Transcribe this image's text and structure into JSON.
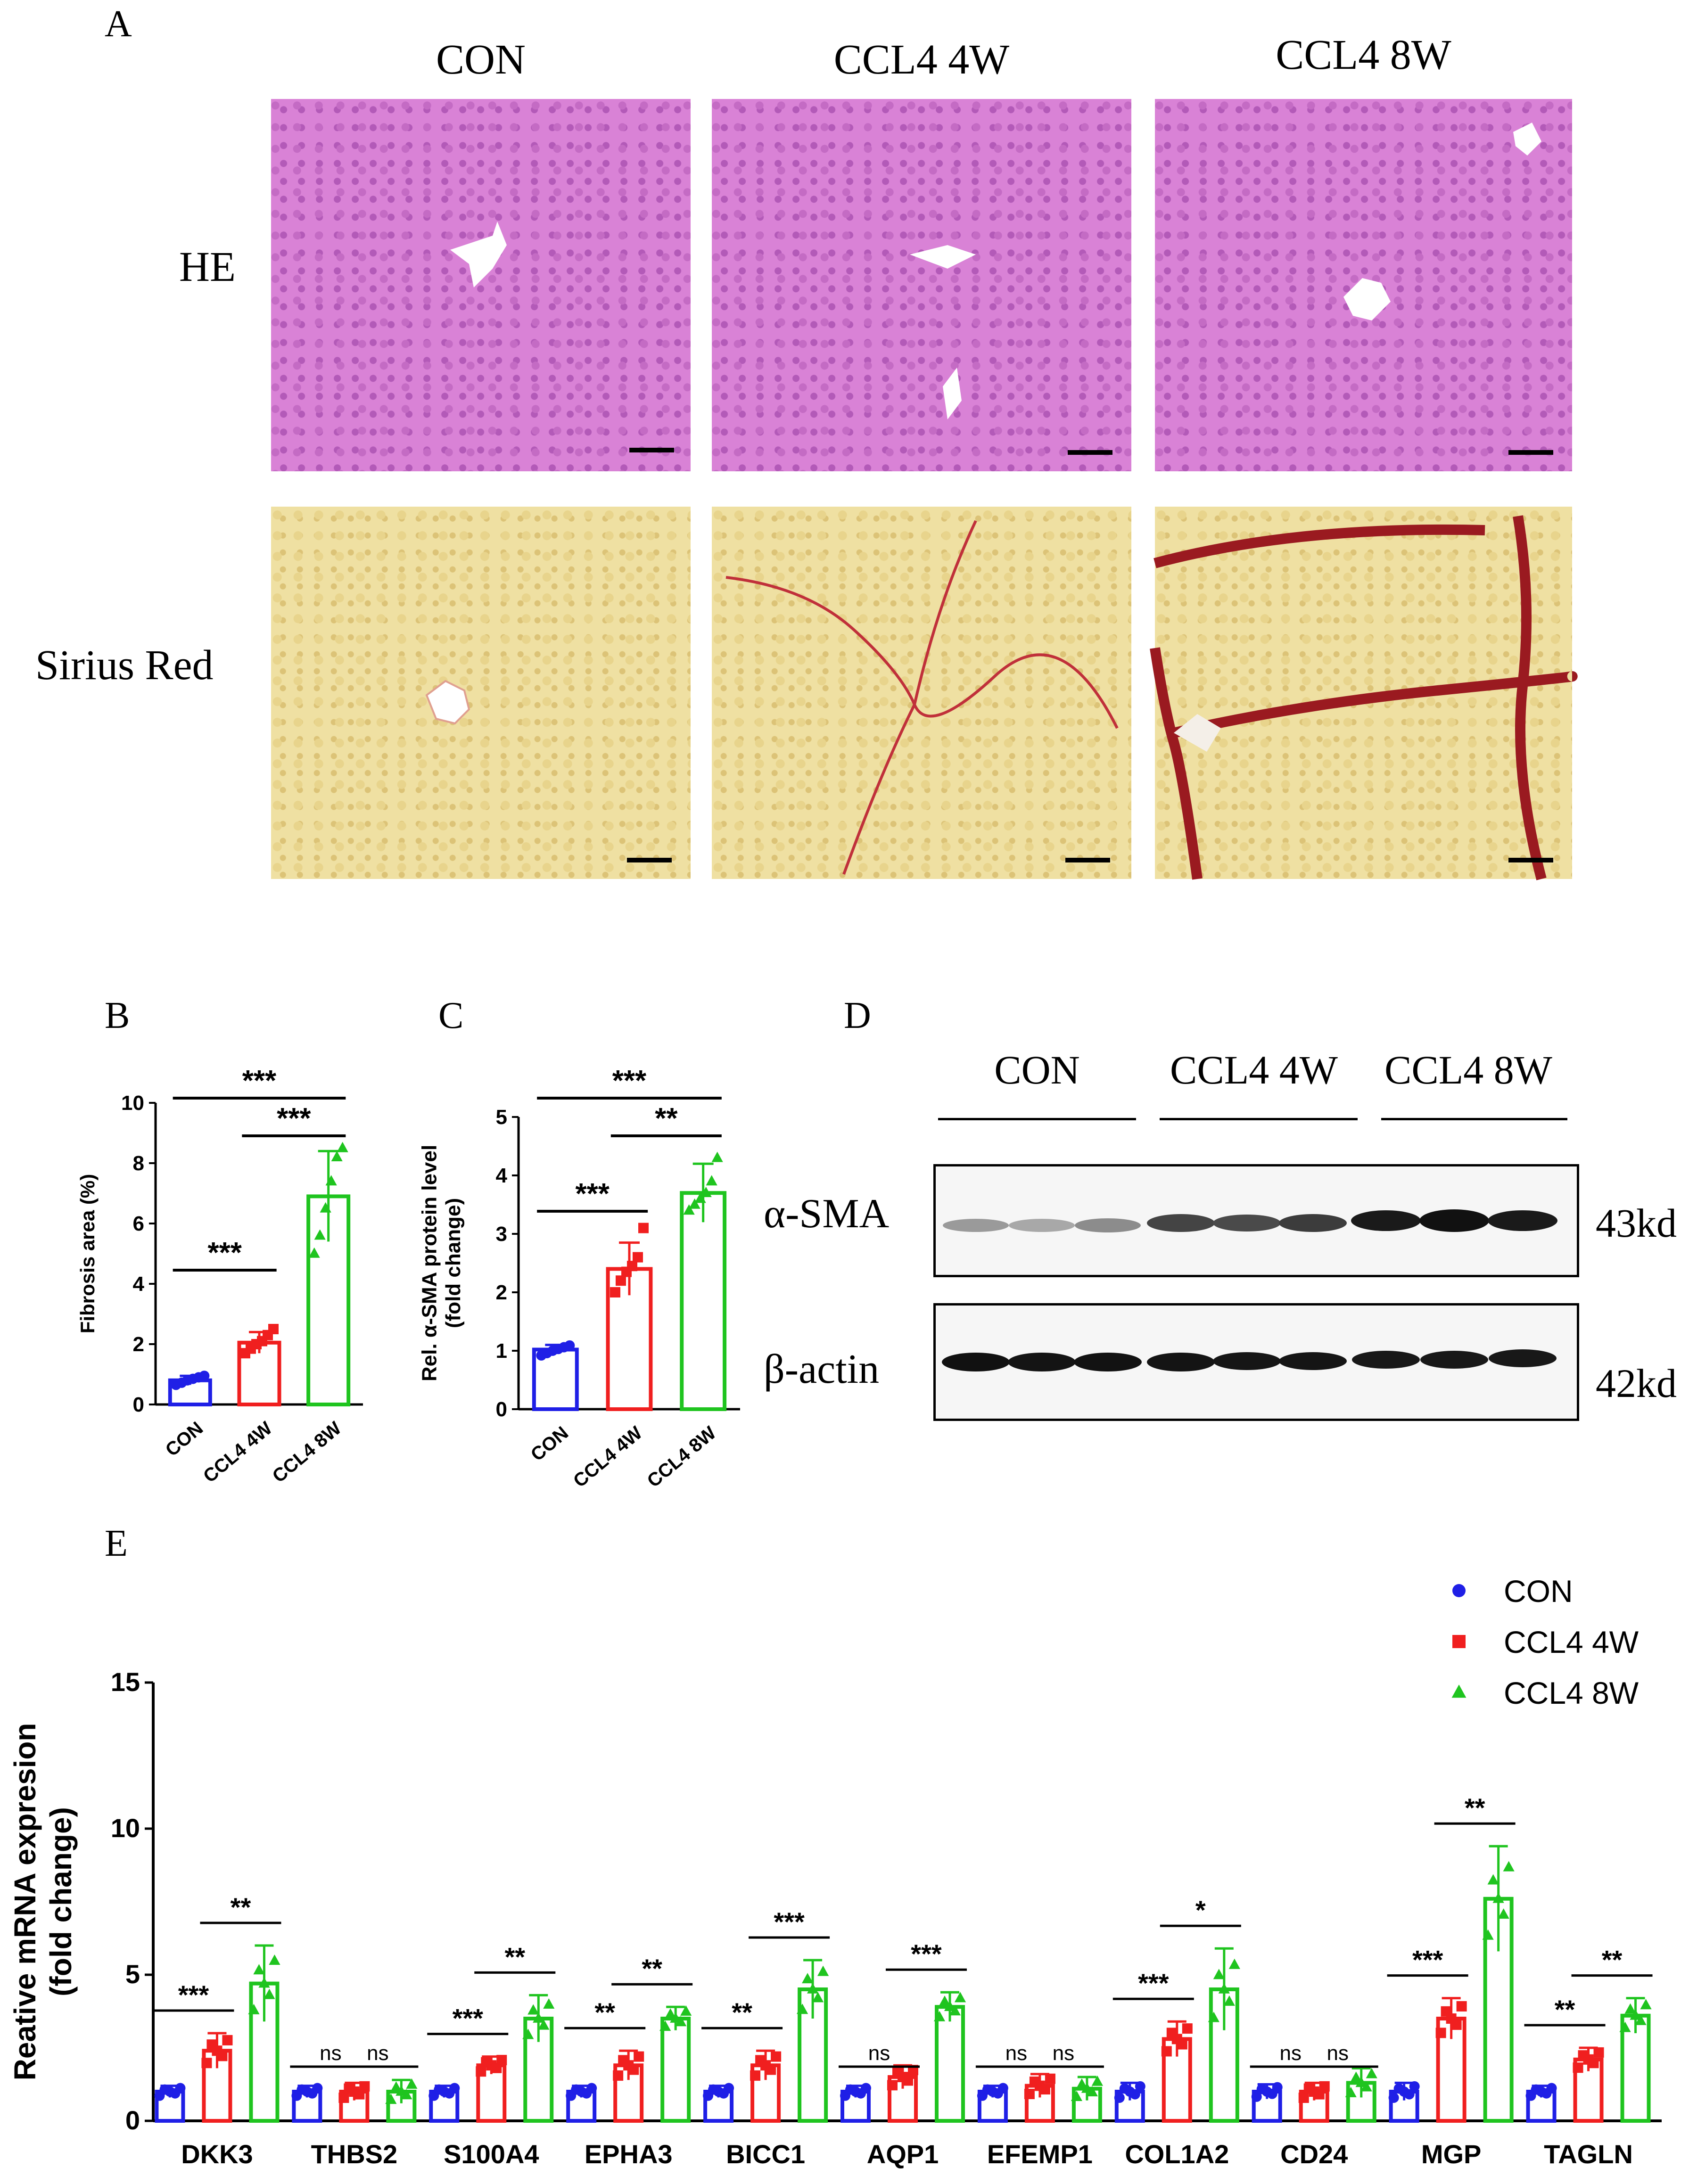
{
  "panel_labels": {
    "A": "A",
    "B": "B",
    "C": "C",
    "D": "D",
    "E": "E"
  },
  "panel_a": {
    "columns": [
      "CON",
      "CCL4 4W",
      "CCL4 8W"
    ],
    "rows": [
      "HE",
      "Sirius Red"
    ]
  },
  "panel_d": {
    "groups": [
      "CON",
      "CCL4 4W",
      "CCL4 8W"
    ],
    "proteins": [
      "α-SMA",
      "β-actin"
    ],
    "sizes": [
      "43kd",
      "42kd"
    ]
  },
  "colors": {
    "CON": "#1f1fe6",
    "CCL4 4W": "#f01f1f",
    "CCL4 8W": "#1fc41f"
  },
  "chart_data": [
    {
      "id": "B",
      "type": "bar",
      "categories": [
        "CON",
        "CCL4 4W",
        "CCL4 8W"
      ],
      "values": [
        0.8,
        2.05,
        6.9
      ],
      "errors": [
        0.15,
        0.35,
        1.5
      ],
      "points": [
        [
          0.65,
          0.72,
          0.8,
          0.85,
          0.9,
          0.95
        ],
        [
          1.7,
          1.85,
          2.0,
          2.1,
          2.3,
          2.5
        ],
        [
          5.0,
          5.6,
          6.5,
          7.4,
          8.2,
          8.5
        ]
      ],
      "ylabel": "Fibrosis area (%)",
      "ylim": [
        0,
        10
      ],
      "yticks": [
        0,
        2,
        4,
        6,
        8,
        10
      ],
      "significance": [
        {
          "from": 0,
          "to": 1,
          "label": "***"
        },
        {
          "from": 1,
          "to": 2,
          "label": "***"
        },
        {
          "from": 0,
          "to": 2,
          "label": "***"
        }
      ]
    },
    {
      "id": "C",
      "type": "bar",
      "categories": [
        "CON",
        "CCL4 4W",
        "CCL4 8W"
      ],
      "values": [
        1.02,
        2.4,
        3.7
      ],
      "errors": [
        0.08,
        0.45,
        0.5
      ],
      "points": [
        [
          0.92,
          0.96,
          1.0,
          1.03,
          1.06,
          1.09
        ],
        [
          2.0,
          2.2,
          2.35,
          2.45,
          2.6,
          3.1
        ],
        [
          3.4,
          3.5,
          3.6,
          3.7,
          3.9,
          4.3
        ]
      ],
      "ylabel": "Rel. α-SMA protein level (fold change)",
      "ylim": [
        0,
        5
      ],
      "yticks": [
        0,
        1,
        2,
        3,
        4,
        5
      ],
      "significance": [
        {
          "from": 0,
          "to": 1,
          "label": "***"
        },
        {
          "from": 1,
          "to": 2,
          "label": "**"
        },
        {
          "from": 0,
          "to": 2,
          "label": "***"
        }
      ]
    },
    {
      "id": "E",
      "type": "bar",
      "categories": [
        "DKK3",
        "THBS2",
        "S100A4",
        "EPHA3",
        "BICC1",
        "AQP1",
        "EFEMP1",
        "COL1A2",
        "CD24",
        "MGP",
        "TAGLN"
      ],
      "series": [
        {
          "name": "CON",
          "values": [
            1.0,
            1.0,
            1.0,
            1.0,
            1.0,
            1.0,
            1.0,
            1.0,
            1.0,
            1.0,
            1.0
          ],
          "errors": [
            0.2,
            0.2,
            0.2,
            0.2,
            0.2,
            0.2,
            0.2,
            0.3,
            0.25,
            0.3,
            0.2
          ]
        },
        {
          "name": "CCL4 4W",
          "values": [
            2.4,
            1.0,
            1.9,
            1.9,
            1.9,
            1.5,
            1.2,
            2.8,
            1.0,
            3.5,
            2.1
          ],
          "errors": [
            0.6,
            0.3,
            0.3,
            0.5,
            0.5,
            0.4,
            0.4,
            0.6,
            0.3,
            0.7,
            0.4
          ]
        },
        {
          "name": "CCL4 8W",
          "values": [
            4.7,
            1.0,
            3.5,
            3.5,
            4.5,
            3.9,
            1.1,
            4.5,
            1.3,
            7.6,
            3.6
          ],
          "errors": [
            1.3,
            0.4,
            0.8,
            0.4,
            1.0,
            0.5,
            0.4,
            1.4,
            0.5,
            1.8,
            0.6
          ]
        }
      ],
      "ylabel": "Reative mRNA expresion (fold  change)",
      "ylim": [
        0,
        15
      ],
      "yticks": [
        0,
        5,
        10,
        15
      ],
      "legend": "top-right",
      "significance": [
        [
          "***",
          "**"
        ],
        [
          "ns",
          "ns"
        ],
        [
          "***",
          "**"
        ],
        [
          "**",
          "**"
        ],
        [
          "**",
          "***"
        ],
        [
          "ns",
          "***"
        ],
        [
          "ns",
          "ns"
        ],
        [
          "***",
          "*"
        ],
        [
          "ns",
          "ns"
        ],
        [
          "***",
          "**"
        ],
        [
          "**",
          "**"
        ]
      ]
    }
  ]
}
